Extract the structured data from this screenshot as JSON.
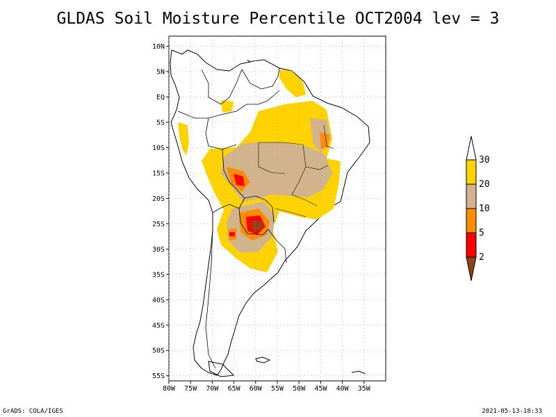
{
  "title": "GLDAS Soil Moisture Percentile OCT2004 lev = 3",
  "footer": {
    "left": "GrADS: COLA/IGES",
    "right": "2021-05-13-18:33"
  },
  "map": {
    "lon_range": [
      -80,
      -30
    ],
    "lat_range": [
      -56,
      12
    ],
    "lat_ticks": [
      {
        "value": 10,
        "label": "10N"
      },
      {
        "value": 5,
        "label": "5N"
      },
      {
        "value": 0,
        "label": "EQ"
      },
      {
        "value": -5,
        "label": "5S"
      },
      {
        "value": -10,
        "label": "10S"
      },
      {
        "value": -15,
        "label": "15S"
      },
      {
        "value": -20,
        "label": "20S"
      },
      {
        "value": -25,
        "label": "25S"
      },
      {
        "value": -30,
        "label": "30S"
      },
      {
        "value": -35,
        "label": "35S"
      },
      {
        "value": -40,
        "label": "40S"
      },
      {
        "value": -45,
        "label": "45S"
      },
      {
        "value": -50,
        "label": "50S"
      },
      {
        "value": -55,
        "label": "55S"
      }
    ],
    "lon_ticks": [
      {
        "value": -80,
        "label": "80W"
      },
      {
        "value": -75,
        "label": "75W"
      },
      {
        "value": -70,
        "label": "70W"
      },
      {
        "value": -65,
        "label": "65W"
      },
      {
        "value": -60,
        "label": "60W"
      },
      {
        "value": -55,
        "label": "55W"
      },
      {
        "value": -50,
        "label": "50W"
      },
      {
        "value": -45,
        "label": "45W"
      },
      {
        "value": -40,
        "label": "40W"
      },
      {
        "value": -35,
        "label": "35W"
      }
    ],
    "grid": true
  },
  "colorbar": {
    "levels": [
      {
        "label": "30",
        "color": "#ffffff"
      },
      {
        "label": "20",
        "color": "#ffd300"
      },
      {
        "label": "10",
        "color": "#d2b48c"
      },
      {
        "label": "5",
        "color": "#ff8c00"
      },
      {
        "label": "2",
        "color": "#ff0000"
      },
      {
        "label": "",
        "color": "#8b4513"
      }
    ]
  },
  "colors": {
    "land": "#ffffff",
    "coast": "#000000",
    "grid": "#999999"
  }
}
